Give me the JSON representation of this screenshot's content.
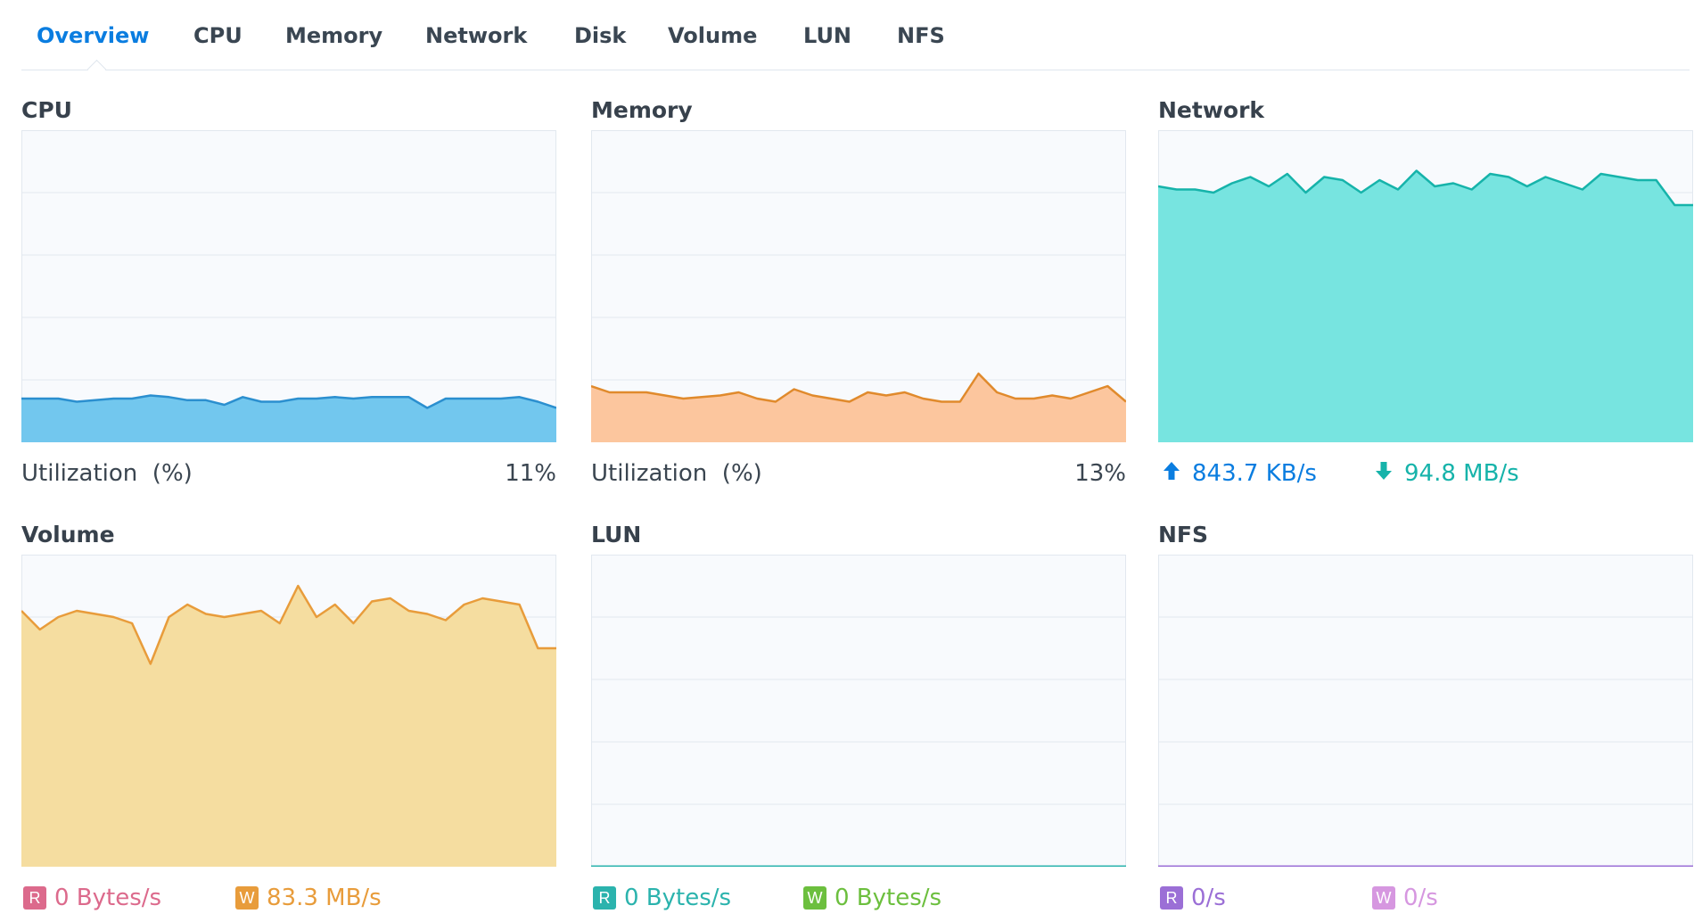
{
  "tabs": [
    {
      "label": "Overview",
      "active": true
    },
    {
      "label": "CPU",
      "active": false
    },
    {
      "label": "Memory",
      "active": false
    },
    {
      "label": "Network",
      "active": false
    },
    {
      "label": "Disk",
      "active": false
    },
    {
      "label": "Volume",
      "active": false
    },
    {
      "label": "LUN",
      "active": false
    },
    {
      "label": "NFS",
      "active": false
    }
  ],
  "panels": {
    "cpu": {
      "title": "CPU",
      "util_label": "Utilization  (%)",
      "util_value": "11%",
      "color_line": "#2b8fcf",
      "color_fill": "#72c7ee"
    },
    "memory": {
      "title": "Memory",
      "util_label": "Utilization  (%)",
      "util_value": "13%",
      "color_line": "#e08a2c",
      "color_fill": "#fcc69e"
    },
    "network": {
      "title": "Network",
      "up_value": "843.7 KB/s",
      "down_value": "94.8 MB/s",
      "up_icon": "upload-arrow-icon",
      "down_icon": "download-arrow-icon",
      "color_up": "#0a7de0",
      "color_down": "#16b3aa",
      "color_fill": "#77e4e0"
    },
    "volume": {
      "title": "Volume",
      "read_badge": "R",
      "read_value": "0 Bytes/s",
      "write_badge": "W",
      "write_value": "83.3 MB/s",
      "color_read": "#dc6a8c",
      "color_write": "#e89c3b",
      "color_fill": "#f5dda0"
    },
    "lun": {
      "title": "LUN",
      "read_badge": "R",
      "read_value": "0 Bytes/s",
      "write_badge": "W",
      "write_value": "0 Bytes/s",
      "color_read": "#2bb3ad",
      "color_write": "#6cbf3e"
    },
    "nfs": {
      "title": "NFS",
      "read_badge": "R",
      "read_value": "0/s",
      "write_badge": "W",
      "write_value": "0/s",
      "color_read": "#9b6fd6",
      "color_write": "#d697e0"
    }
  },
  "chart_data": [
    {
      "name": "cpu",
      "type": "area",
      "ylim": [
        0,
        100
      ],
      "values": [
        14,
        14,
        14,
        13,
        13.5,
        14,
        14,
        15,
        14.5,
        13.5,
        13.5,
        12,
        14.5,
        13,
        13,
        14,
        14,
        14.5,
        14,
        14.5,
        14.5,
        14.5,
        11,
        14,
        14,
        14,
        14,
        14.5,
        13,
        11
      ]
    },
    {
      "name": "memory",
      "type": "area",
      "ylim": [
        0,
        100
      ],
      "values": [
        18,
        16,
        16,
        16,
        15,
        14,
        14.5,
        15,
        16,
        14,
        13,
        17,
        15,
        14,
        13,
        16,
        15,
        16,
        14,
        13,
        13,
        22,
        16,
        14,
        14,
        15,
        14,
        16,
        18,
        13
      ]
    },
    {
      "name": "network",
      "type": "area",
      "ylim": [
        0,
        100
      ],
      "series": [
        {
          "name": "upload",
          "values": [
            1,
            1,
            1,
            1,
            1,
            1,
            1,
            1,
            1,
            1,
            1,
            1,
            1,
            1,
            1,
            1,
            1,
            1,
            1,
            1,
            1,
            1,
            1,
            1,
            1,
            1,
            1,
            1,
            1,
            1
          ]
        },
        {
          "name": "download",
          "values": [
            82,
            81,
            81,
            80,
            83,
            85,
            82,
            86,
            80,
            85,
            84,
            80,
            84,
            81,
            87,
            82,
            83,
            81,
            86,
            85,
            82,
            85,
            83,
            81,
            86,
            85,
            84,
            84,
            76,
            76
          ]
        }
      ]
    },
    {
      "name": "volume",
      "type": "area",
      "ylim": [
        0,
        100
      ],
      "series": [
        {
          "name": "write",
          "values": [
            82,
            76,
            80,
            82,
            81,
            80,
            78,
            65,
            80,
            84,
            81,
            80,
            81,
            82,
            78,
            90,
            80,
            84,
            78,
            85,
            86,
            82,
            81,
            79,
            84,
            86,
            85,
            84,
            70,
            70
          ]
        }
      ]
    },
    {
      "name": "lun",
      "type": "area",
      "ylim": [
        0,
        100
      ],
      "series": [
        {
          "name": "read",
          "values": [
            0,
            0,
            0,
            0,
            0,
            0,
            0,
            0,
            0,
            0,
            0,
            0,
            0,
            0,
            0,
            0,
            0,
            0,
            0,
            0,
            0,
            0,
            0,
            0,
            0,
            0,
            0,
            0,
            0,
            0
          ]
        }
      ]
    },
    {
      "name": "nfs",
      "type": "area",
      "ylim": [
        0,
        100
      ],
      "series": [
        {
          "name": "read",
          "values": [
            0,
            0,
            0,
            0,
            0,
            0,
            0,
            0,
            0,
            0,
            0,
            0,
            0,
            0,
            0,
            0,
            0,
            0,
            0,
            0,
            0,
            0,
            0,
            0,
            0,
            0,
            0,
            0,
            0,
            0
          ]
        }
      ]
    }
  ]
}
